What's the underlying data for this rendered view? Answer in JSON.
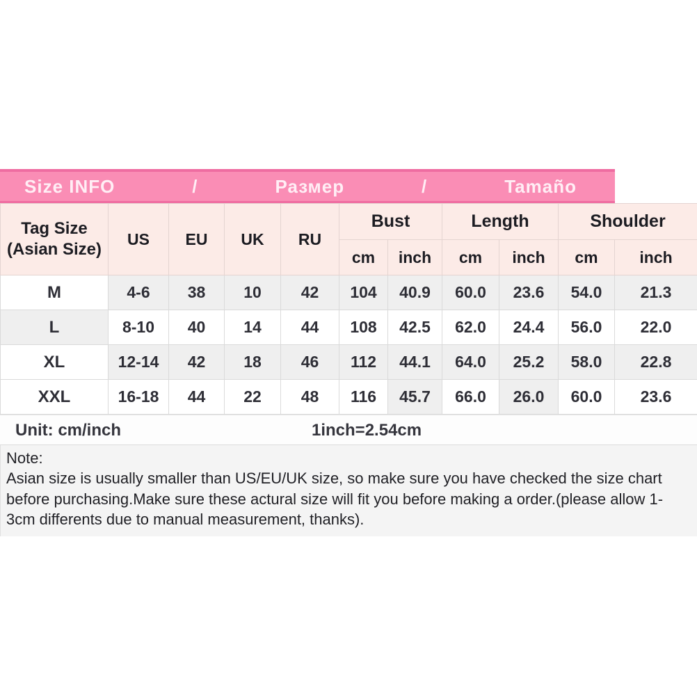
{
  "banner": {
    "title_en": "Size INFO",
    "separator1": "/",
    "title_ru": "Размер",
    "separator2": "/",
    "title_es": "Tamaño"
  },
  "table": {
    "tag_header_line1": "Tag Size",
    "tag_header_line2": "(Asian Size)",
    "col_headers": [
      "US",
      "EU",
      "UK",
      "RU"
    ],
    "group_headers": [
      "Bust",
      "Length",
      "Shoulder"
    ],
    "sub_headers": [
      "cm",
      "inch"
    ],
    "rows": [
      {
        "label": "M",
        "values": [
          "4-6",
          "38",
          "10",
          "42",
          "104",
          "40.9",
          "60.0",
          "23.6",
          "54.0",
          "21.3"
        ]
      },
      {
        "label": "L",
        "values": [
          "8-10",
          "40",
          "14",
          "44",
          "108",
          "42.5",
          "62.0",
          "24.4",
          "56.0",
          "22.0"
        ]
      },
      {
        "label": "XL",
        "values": [
          "12-14",
          "42",
          "18",
          "46",
          "112",
          "44.1",
          "64.0",
          "25.2",
          "58.0",
          "22.8"
        ]
      },
      {
        "label": "XXL",
        "values": [
          "16-18",
          "44",
          "22",
          "48",
          "116",
          "45.7",
          "66.0",
          "26.0",
          "60.0",
          "23.6"
        ]
      }
    ]
  },
  "footer": {
    "unit_label": "Unit: cm/inch",
    "conversion": "1inch=2.54cm"
  },
  "note": {
    "title": "Note:",
    "body": "Asian size is usually smaller than US/EU/UK size, so make sure you have checked the size chart before purchasing.Make sure these actural size will fit you before making a order.(please allow 1-3cm differents due to manual measurement, thanks)."
  },
  "colors": {
    "banner_pink": "#fa8db5",
    "banner_border": "#ef6ca1",
    "header_peach": "#fcebe7",
    "cell_shade": "#efefef",
    "note_bg": "#f4f4f4"
  }
}
